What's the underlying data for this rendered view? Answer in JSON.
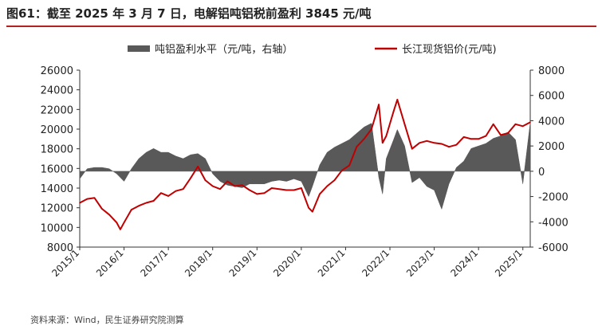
{
  "figure": {
    "title": "图61：截至 2025 年 3 月 7 日，电解铝吨铝税前盈利 3845 元/吨",
    "source": "资料来源：Wind，民生证券研究院测算"
  },
  "colors": {
    "profit": "#595959",
    "price": "#c00000",
    "title_rule": "#b22222"
  },
  "chart_data": {
    "type": "area",
    "title": "",
    "legend_position": "top",
    "grid": false,
    "x_axis": {
      "type": "date",
      "range": [
        "2015-01",
        "2025-03"
      ],
      "tick_labels": [
        "2015/1",
        "2016/1",
        "2017/1",
        "2018/1",
        "2019/1",
        "2020/1",
        "2021/1",
        "2022/1",
        "2023/1",
        "2024/1",
        "2025/1"
      ]
    },
    "y_left": {
      "range": [
        8000,
        26000
      ],
      "step": 2000,
      "tick_labels": [
        "8000",
        "10000",
        "12000",
        "14000",
        "16000",
        "18000",
        "20000",
        "22000",
        "24000",
        "26000"
      ]
    },
    "y_right": {
      "range": [
        -6000,
        8000
      ],
      "step": 2000,
      "tick_labels": [
        "-6000",
        "-4000",
        "-2000",
        "0",
        "2000",
        "4000",
        "6000",
        "8000"
      ]
    },
    "series": [
      {
        "name": "吨铝盈利水平（元/吨，右轴）",
        "type": "area",
        "axis": "right",
        "x": [
          "2015-01",
          "2015-03",
          "2015-05",
          "2015-07",
          "2015-09",
          "2015-11",
          "2016-01",
          "2016-03",
          "2016-05",
          "2016-07",
          "2016-09",
          "2016-11",
          "2017-01",
          "2017-03",
          "2017-05",
          "2017-07",
          "2017-09",
          "2017-11",
          "2018-01",
          "2018-03",
          "2018-05",
          "2018-07",
          "2018-09",
          "2018-11",
          "2019-01",
          "2019-03",
          "2019-05",
          "2019-07",
          "2019-09",
          "2019-11",
          "2020-01",
          "2020-03",
          "2020-04",
          "2020-06",
          "2020-08",
          "2020-10",
          "2020-12",
          "2021-02",
          "2021-04",
          "2021-06",
          "2021-08",
          "2021-10",
          "2021-11",
          "2021-12",
          "2022-02",
          "2022-03",
          "2022-05",
          "2022-07",
          "2022-09",
          "2022-11",
          "2023-01",
          "2023-03",
          "2023-05",
          "2023-07",
          "2023-09",
          "2023-11",
          "2024-01",
          "2024-03",
          "2024-05",
          "2024-07",
          "2024-09",
          "2024-11",
          "2025-01",
          "2025-03"
        ],
        "values": [
          -600,
          200,
          300,
          300,
          200,
          -200,
          -800,
          200,
          1000,
          1500,
          1800,
          1500,
          1500,
          1200,
          1000,
          1300,
          1400,
          1000,
          -200,
          -800,
          -1100,
          -1200,
          -1300,
          -1000,
          -1000,
          -1000,
          -800,
          -700,
          -800,
          -600,
          -800,
          -2000,
          -1200,
          500,
          1500,
          1900,
          2200,
          2500,
          3000,
          3500,
          3800,
          -500,
          -1800,
          1000,
          2500,
          3300,
          2000,
          -900,
          -500,
          -1200,
          -1500,
          -3000,
          -1000,
          300,
          800,
          1800,
          2000,
          2200,
          2600,
          2800,
          3100,
          2500,
          -1000,
          3845
        ]
      },
      {
        "name": "长江现货铝价(元/吨)",
        "type": "line",
        "axis": "left",
        "x": [
          "2015-01",
          "2015-03",
          "2015-05",
          "2015-07",
          "2015-09",
          "2015-11",
          "2015-12",
          "2016-01",
          "2016-03",
          "2016-05",
          "2016-07",
          "2016-09",
          "2016-11",
          "2017-01",
          "2017-03",
          "2017-05",
          "2017-07",
          "2017-09",
          "2017-11",
          "2018-01",
          "2018-03",
          "2018-05",
          "2018-07",
          "2018-09",
          "2018-11",
          "2019-01",
          "2019-03",
          "2019-05",
          "2019-07",
          "2019-09",
          "2019-11",
          "2020-01",
          "2020-03",
          "2020-04",
          "2020-06",
          "2020-08",
          "2020-10",
          "2020-12",
          "2021-02",
          "2021-04",
          "2021-06",
          "2021-08",
          "2021-10",
          "2021-11",
          "2021-12",
          "2022-02",
          "2022-03",
          "2022-05",
          "2022-07",
          "2022-09",
          "2022-11",
          "2023-01",
          "2023-03",
          "2023-05",
          "2023-07",
          "2023-09",
          "2023-11",
          "2024-01",
          "2024-03",
          "2024-05",
          "2024-07",
          "2024-09",
          "2024-11",
          "2025-01",
          "2025-03"
        ],
        "values": [
          12500,
          12900,
          13000,
          11900,
          11300,
          10500,
          9800,
          10500,
          11800,
          12200,
          12500,
          12700,
          13500,
          13200,
          13700,
          13900,
          15000,
          16200,
          14800,
          14200,
          13900,
          14700,
          14200,
          14300,
          13800,
          13400,
          13500,
          14000,
          13900,
          13800,
          13800,
          14000,
          12000,
          11600,
          13400,
          14200,
          14800,
          15800,
          16300,
          18200,
          19000,
          20000,
          22500,
          18600,
          19300,
          21800,
          23000,
          20500,
          18000,
          18600,
          18800,
          18600,
          18500,
          18200,
          18400,
          19200,
          19000,
          19000,
          19300,
          20500,
          19400,
          19600,
          20500,
          20300,
          20700
        ]
      }
    ]
  }
}
